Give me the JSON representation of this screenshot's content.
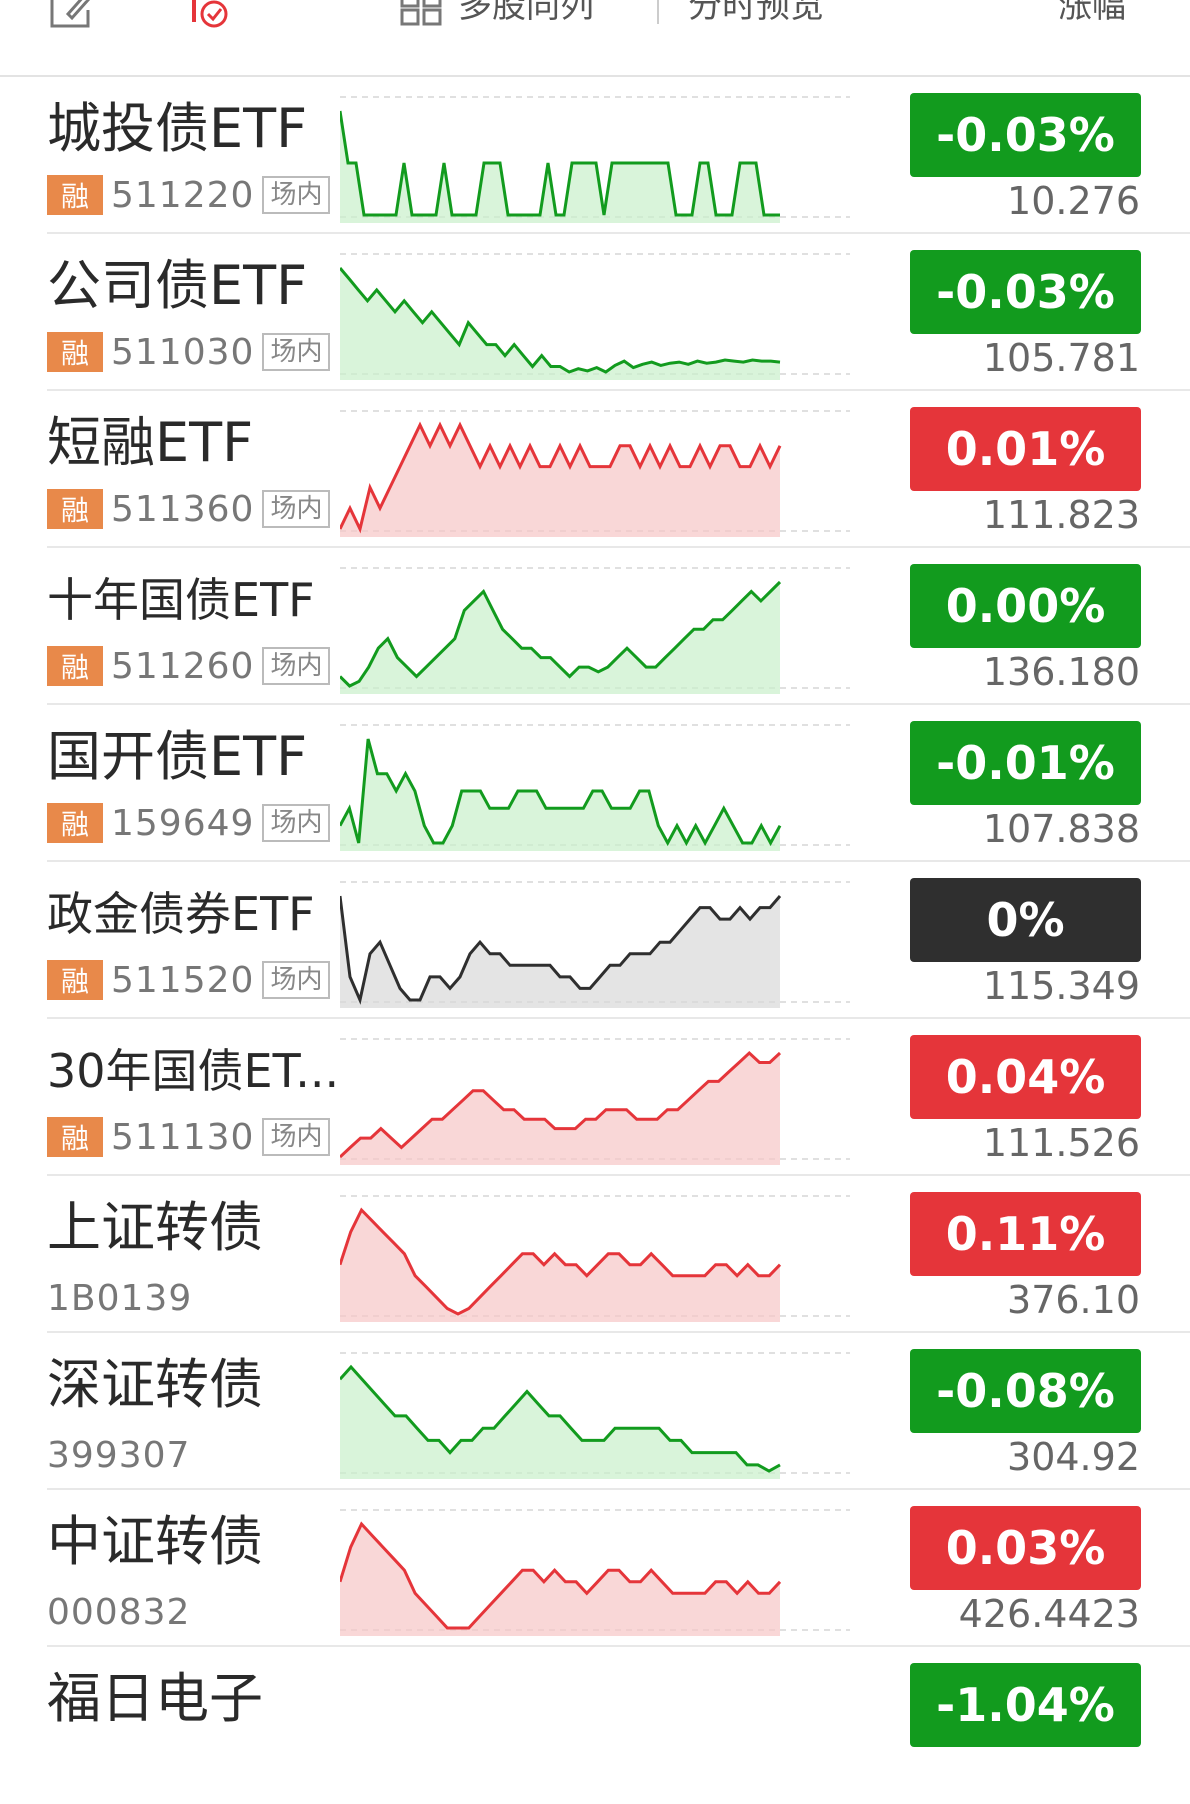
{
  "header": {
    "multi_stock_label": "多股同列",
    "timeshare_label": "分时预览",
    "change_label": "涨幅"
  },
  "colors": {
    "up": "#e5353a",
    "down": "#129b1e",
    "flat": "#2f2f2f",
    "rong_badge": "#e8894a"
  },
  "items": [
    {
      "name": "城投债ETF",
      "code": "511220",
      "rong": "融",
      "tag": "场内",
      "change": "-0.03%",
      "price": "10.276",
      "trend": "down",
      "spark": [
        3,
        2,
        2,
        1,
        1,
        1,
        1,
        1,
        2,
        1,
        1,
        1,
        1,
        2,
        1,
        1,
        1,
        1,
        2,
        2,
        2,
        1,
        1,
        1,
        1,
        1,
        2,
        1,
        1,
        2,
        2,
        2,
        2,
        1,
        2,
        2,
        2,
        2,
        2,
        2,
        2,
        2,
        1,
        1,
        1,
        2,
        2,
        1,
        1,
        1,
        2,
        2,
        2,
        1,
        1,
        1
      ]
    },
    {
      "name": "公司债ETF",
      "code": "511030",
      "rong": "融",
      "tag": "场内",
      "change": "-0.03%",
      "price": "105.781",
      "trend": "down",
      "spark": [
        10,
        9,
        8,
        7,
        8,
        7,
        6,
        7,
        6,
        5,
        6,
        5,
        4,
        3,
        5,
        4,
        3,
        3,
        2,
        3,
        2,
        1,
        2,
        1,
        1,
        0.5,
        0.8,
        0.6,
        0.9,
        0.5,
        1.1,
        1.5,
        0.9,
        1.2,
        1.4,
        1.1,
        1.3,
        1.4,
        1.2,
        1.5,
        1.3,
        1.4,
        1.6,
        1.5,
        1.4,
        1.6,
        1.5,
        1.5,
        1.4
      ]
    },
    {
      "name": "短融ETF",
      "code": "511360",
      "rong": "融",
      "tag": "场内",
      "change": "0.01%",
      "price": "111.823",
      "trend": "up",
      "spark": [
        3,
        3.5,
        3,
        4,
        3.5,
        4,
        4.5,
        5,
        5.5,
        5,
        5.5,
        5,
        5.5,
        5,
        4.5,
        5,
        4.5,
        5,
        4.5,
        5,
        4.5,
        4.5,
        5,
        4.5,
        5,
        4.5,
        4.5,
        4.5,
        5,
        5,
        4.5,
        5,
        4.5,
        5,
        4.5,
        4.5,
        5,
        4.5,
        5,
        5,
        4.5,
        4.5,
        5,
        4.5,
        5
      ]
    },
    {
      "name": "十年国债ETF",
      "code": "511260",
      "rong": "融",
      "tag": "场内",
      "change": "0.00%",
      "price": "136.180",
      "trend": "down",
      "spark": [
        2,
        1,
        1.5,
        3,
        5,
        6,
        4,
        3,
        2,
        3,
        4,
        5,
        6,
        9,
        10,
        11,
        9,
        7,
        6,
        5,
        5,
        4,
        4,
        3,
        2,
        3,
        3,
        2.5,
        3,
        4,
        5,
        4,
        3,
        3,
        4,
        5,
        6,
        7,
        7,
        8,
        8,
        9,
        10,
        11,
        10,
        11,
        12
      ]
    },
    {
      "name": "国开债ETF",
      "code": "159649",
      "rong": "融",
      "tag": "场内",
      "change": "-0.01%",
      "price": "107.838",
      "trend": "down",
      "spark": [
        2,
        3,
        1,
        7,
        5,
        5,
        4,
        5,
        4,
        2,
        1,
        1,
        2,
        4,
        4,
        4,
        3,
        3,
        3,
        4,
        4,
        4,
        3,
        3,
        3,
        3,
        3,
        4,
        4,
        3,
        3,
        3,
        4,
        4,
        2,
        1,
        2,
        1,
        2,
        1,
        2,
        3,
        2,
        1,
        1,
        2,
        1,
        2
      ]
    },
    {
      "name": "政金债券ETF",
      "code": "511520",
      "rong": "融",
      "tag": "场内",
      "change": "0%",
      "price": "115.349",
      "trend": "flat",
      "spark": [
        10,
        3,
        1,
        5,
        6,
        4,
        2,
        1,
        1,
        3,
        3,
        2,
        3,
        5,
        6,
        5,
        5,
        4,
        4,
        4,
        4,
        4,
        3,
        3,
        2,
        2,
        3,
        4,
        4,
        5,
        5,
        5,
        6,
        6,
        7,
        8,
        9,
        9,
        8,
        8,
        9,
        8,
        9,
        9,
        10
      ]
    },
    {
      "name": "30年国债ET...",
      "code": "511130",
      "rong": "融",
      "tag": "场内",
      "change": "0.04%",
      "price": "111.526",
      "trend": "up",
      "spark": [
        2,
        3,
        4,
        4,
        5,
        4,
        3,
        4,
        5,
        6,
        6,
        7,
        8,
        9,
        9,
        8,
        7,
        7,
        6,
        6,
        6,
        5,
        5,
        5,
        6,
        6,
        7,
        7,
        7,
        6,
        6,
        6,
        7,
        7,
        8,
        9,
        10,
        10,
        11,
        12,
        13,
        12,
        12,
        13
      ]
    },
    {
      "name": "上证转债",
      "code": "1B0139",
      "rong": "",
      "tag": "",
      "change": "0.11%",
      "price": "376.10",
      "trend": "up",
      "spark": [
        5,
        8,
        10,
        9,
        8,
        7,
        6,
        4,
        3,
        2,
        1,
        0.5,
        1,
        2,
        3,
        4,
        5,
        6,
        6,
        5,
        6,
        5,
        5,
        4,
        5,
        6,
        6,
        5,
        5,
        6,
        5,
        4,
        4,
        4,
        4,
        5,
        5,
        4,
        5,
        4,
        4,
        5
      ]
    },
    {
      "name": "深证转债",
      "code": "399307",
      "rong": "",
      "tag": "",
      "change": "-0.08%",
      "price": "304.92",
      "trend": "down",
      "spark": [
        8,
        9,
        8,
        7,
        6,
        5,
        5,
        4,
        3,
        3,
        2,
        3,
        3,
        4,
        4,
        5,
        6,
        7,
        6,
        5,
        5,
        4,
        3,
        3,
        3,
        4,
        4,
        4,
        4,
        4,
        3,
        3,
        2,
        2,
        2,
        2,
        2,
        1,
        1,
        0.5,
        1
      ]
    },
    {
      "name": "中证转债",
      "code": "000832",
      "rong": "",
      "tag": "",
      "change": "0.03%",
      "price": "426.4423",
      "trend": "up",
      "spark": [
        5,
        8,
        10,
        9,
        8,
        7,
        6,
        4,
        3,
        2,
        1,
        1,
        1,
        2,
        3,
        4,
        5,
        6,
        6,
        5,
        6,
        5,
        5,
        4,
        5,
        6,
        6,
        5,
        5,
        6,
        5,
        4,
        4,
        4,
        4,
        5,
        5,
        4,
        5,
        4,
        4,
        5
      ]
    }
  ],
  "partial_item": {
    "name": "福日电子",
    "change": "-1.04%"
  }
}
